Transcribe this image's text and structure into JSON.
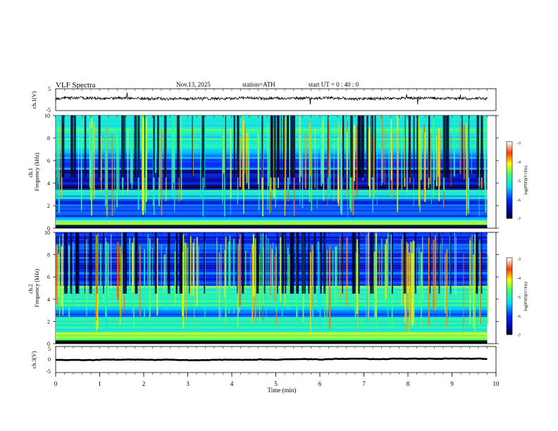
{
  "header": {
    "title": "VLF  Spectra",
    "date": "Nov.13, 2025",
    "station": "station=ATH",
    "start": "start  UT  =   0 : 40 : 0"
  },
  "chart_data": [
    {
      "type": "line",
      "name": "ch1-waveform",
      "ylabel": "ch.1(V)",
      "ylim": [
        -5,
        5
      ],
      "y_ticks": [
        "5",
        "-5"
      ],
      "mean_level": 0.6,
      "noise_amplitude": 1.2
    },
    {
      "type": "heatmap",
      "name": "ch1-spectrogram",
      "ylabel": "ch.1\nFrequency (kHz)",
      "ylim": [
        0,
        10
      ],
      "y_ticks": [
        "0",
        "2",
        "4",
        "6",
        "8",
        "10"
      ],
      "colorbar": {
        "label": "log(PSD)(V²/Hz)",
        "range": [
          -7,
          -3
        ],
        "ticks": [
          "-3",
          "-4",
          "-5",
          "-6",
          "-7"
        ]
      },
      "bands_khz": [
        {
          "from": 0.0,
          "to": 0.3,
          "level": -7.0
        },
        {
          "from": 0.3,
          "to": 0.7,
          "level": -4.2
        },
        {
          "from": 0.7,
          "to": 1.0,
          "level": -5.6
        },
        {
          "from": 1.0,
          "to": 2.6,
          "level": -6.0
        },
        {
          "from": 2.6,
          "to": 3.4,
          "level": -5.2
        },
        {
          "from": 3.4,
          "to": 5.2,
          "level": -6.6
        },
        {
          "from": 5.2,
          "to": 6.8,
          "level": -5.8
        },
        {
          "from": 6.8,
          "to": 10.0,
          "level": -5.0
        }
      ]
    },
    {
      "type": "heatmap",
      "name": "ch2-spectrogram",
      "ylabel": "ch.2\nFrequency (kHz)",
      "ylim": [
        0,
        10
      ],
      "y_ticks": [
        "0",
        "2",
        "4",
        "6",
        "8",
        "10"
      ],
      "colorbar": {
        "label": "log(PSD)(V²/Hz)",
        "range": [
          -7,
          -3
        ],
        "ticks": [
          "-3",
          "-4",
          "-5",
          "-6",
          "-7"
        ]
      },
      "bands_khz": [
        {
          "from": 0.0,
          "to": 0.3,
          "level": -7.0
        },
        {
          "from": 0.3,
          "to": 1.2,
          "level": -4.6
        },
        {
          "from": 1.2,
          "to": 2.4,
          "level": -5.0
        },
        {
          "from": 2.4,
          "to": 3.2,
          "level": -5.6
        },
        {
          "from": 3.2,
          "to": 4.6,
          "level": -5.0
        },
        {
          "from": 4.6,
          "to": 5.2,
          "level": -4.8
        },
        {
          "from": 5.2,
          "to": 6.6,
          "level": -6.0
        },
        {
          "from": 6.6,
          "to": 10.0,
          "level": -6.1
        }
      ]
    },
    {
      "type": "line",
      "name": "ch3-waveform",
      "ylabel": "ch.3(V)",
      "ylim": [
        -5,
        5
      ],
      "y_ticks": [
        "5",
        "0",
        "-5"
      ],
      "mean_level": 0.0,
      "noise_amplitude": 0.15
    }
  ],
  "x_axis": {
    "label": "Time  (min)",
    "range": [
      0,
      10
    ],
    "data_end": 9.8,
    "ticks": [
      "0",
      "1",
      "2",
      "3",
      "4",
      "5",
      "6",
      "7",
      "8",
      "9",
      "10"
    ]
  }
}
